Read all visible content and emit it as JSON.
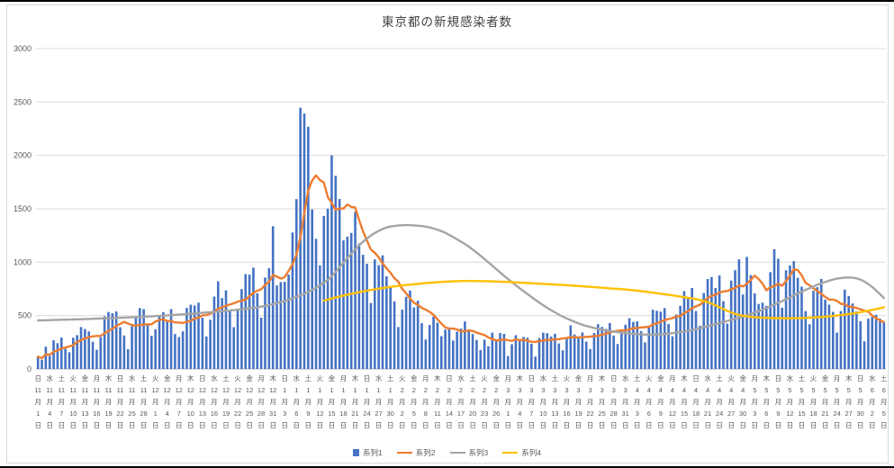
{
  "chart_data": {
    "type": "combo",
    "title": "東京都の新規感染者数",
    "xlabel": "",
    "ylabel": "",
    "ylim": [
      0,
      3000
    ],
    "yticks": [
      0,
      500,
      1000,
      1500,
      2000,
      2500,
      3000
    ],
    "grid": "horizontal",
    "legend_position": "bottom",
    "x_label_step": 3,
    "x_label_format": [
      "weekday",
      "month_number",
      "月",
      "day_number",
      "日"
    ],
    "categories": [
      [
        "日",
        11,
        1
      ],
      [
        "水",
        11,
        4
      ],
      [
        "土",
        11,
        7
      ],
      [
        "火",
        11,
        10
      ],
      [
        "金",
        11,
        13
      ],
      [
        "月",
        11,
        16
      ],
      [
        "木",
        11,
        19
      ],
      [
        "日",
        11,
        22
      ],
      [
        "水",
        11,
        25
      ],
      [
        "土",
        11,
        28
      ],
      [
        "火",
        12,
        1
      ],
      [
        "金",
        12,
        4
      ],
      [
        "月",
        12,
        7
      ],
      [
        "木",
        12,
        10
      ],
      [
        "日",
        12,
        13
      ],
      [
        "水",
        12,
        16
      ],
      [
        "土",
        12,
        19
      ],
      [
        "火",
        12,
        22
      ],
      [
        "金",
        12,
        25
      ],
      [
        "月",
        12,
        28
      ],
      [
        "木",
        12,
        31
      ],
      [
        "日",
        1,
        3
      ],
      [
        "水",
        1,
        6
      ],
      [
        "土",
        1,
        9
      ],
      [
        "火",
        1,
        12
      ],
      [
        "金",
        1,
        15
      ],
      [
        "月",
        1,
        18
      ],
      [
        "木",
        1,
        21
      ],
      [
        "日",
        1,
        24
      ],
      [
        "水",
        1,
        27
      ],
      [
        "土",
        1,
        30
      ],
      [
        "火",
        2,
        2
      ],
      [
        "金",
        2,
        5
      ],
      [
        "月",
        2,
        8
      ],
      [
        "木",
        2,
        11
      ],
      [
        "日",
        2,
        14
      ],
      [
        "水",
        2,
        17
      ],
      [
        "土",
        2,
        20
      ],
      [
        "火",
        2,
        23
      ],
      [
        "金",
        2,
        26
      ],
      [
        "月",
        3,
        1
      ],
      [
        "木",
        3,
        4
      ],
      [
        "日",
        3,
        7
      ],
      [
        "水",
        3,
        10
      ],
      [
        "土",
        3,
        13
      ],
      [
        "火",
        3,
        16
      ],
      [
        "金",
        3,
        19
      ],
      [
        "月",
        3,
        22
      ],
      [
        "木",
        3,
        25
      ],
      [
        "日",
        3,
        28
      ],
      [
        "水",
        3,
        31
      ],
      [
        "土",
        4,
        3
      ],
      [
        "火",
        4,
        6
      ],
      [
        "金",
        4,
        9
      ],
      [
        "月",
        4,
        12
      ],
      [
        "木",
        4,
        15
      ],
      [
        "日",
        4,
        18
      ],
      [
        "水",
        4,
        21
      ],
      [
        "土",
        4,
        24
      ],
      [
        "火",
        4,
        27
      ],
      [
        "金",
        4,
        30
      ],
      [
        "月",
        5,
        3
      ],
      [
        "木",
        5,
        6
      ],
      [
        "日",
        5,
        9
      ],
      [
        "水",
        5,
        12
      ],
      [
        "土",
        5,
        15
      ],
      [
        "火",
        5,
        18
      ],
      [
        "金",
        5,
        21
      ],
      [
        "月",
        5,
        24
      ],
      [
        "木",
        5,
        27
      ],
      [
        "日",
        5,
        30
      ],
      [
        "水",
        6,
        2
      ],
      [
        "土",
        6,
        5
      ]
    ],
    "series": [
      {
        "name": "系列1",
        "type": "bar",
        "color": "#4472C4",
        "values": [
          116,
          87,
          209,
          122,
          269,
          242,
          294,
          189,
          157,
          293,
          317,
          393,
          374,
          352,
          255,
          180,
          298,
          493,
          534,
          522,
          539,
          391,
          314,
          186,
          401,
          481,
          570,
          561,
          418,
          311,
          372,
          500,
          533,
          449,
          561,
          327,
          299,
          352,
          572,
          602,
          595,
          621,
          480,
          305,
          460,
          678,
          822,
          664,
          736,
          556,
          392,
          563,
          748,
          888,
          884,
          949,
          708,
          481,
          856,
          944,
          1337,
          783,
          814,
          816,
          884,
          1278,
          1591,
          2447,
          2392,
          2268,
          1494,
          1219,
          970,
          1433,
          1502,
          2001,
          1809,
          1592,
          1204,
          1240,
          1274,
          1471,
          1175,
          1070,
          986,
          618,
          1026,
          973,
          1064,
          868,
          769,
          633,
          393,
          556,
          676,
          734,
          577,
          639,
          429,
          276,
          412,
          491,
          434,
          307,
          369,
          371,
          266,
          350,
          378,
          445,
          353,
          327,
          272,
          178,
          275,
          213,
          340,
          270,
          337,
          329,
          121,
          232,
          316,
          279,
          301,
          293,
          237,
          116,
          290,
          340,
          335,
          304,
          330,
          239,
          175,
          300,
          409,
          323,
          303,
          342,
          256,
          187,
          337,
          420,
          394,
          376,
          430,
          313,
          234,
          364,
          414,
          475,
          440,
          446,
          355,
          249,
          399,
          555,
          545,
          537,
          570,
          421,
          306,
          510,
          591,
          729,
          667,
          759,
          543,
          405,
          711,
          843,
          861,
          759,
          876,
          635,
          425,
          828,
          925,
          1027,
          698,
          1050,
          879,
          708,
          609,
          621,
          591,
          907,
          1121,
          1032,
          573,
          925,
          969,
          1010,
          854,
          772,
          542,
          419,
          732,
          766,
          843,
          649,
          602,
          535,
          340,
          542,
          743,
          684,
          614,
          539,
          448,
          260,
          471,
          487,
          508,
          472,
          436
        ]
      },
      {
        "name": "系列2",
        "type": "line",
        "color": "#ED7D31",
        "derivation": "ma7_of_series1"
      },
      {
        "name": "系列3",
        "type": "line",
        "color": "#A5A5A5",
        "points": [
          [
            0,
            455
          ],
          [
            10,
            465
          ],
          [
            20,
            478
          ],
          [
            30,
            495
          ],
          [
            40,
            520
          ],
          [
            50,
            550
          ],
          [
            58,
            588
          ],
          [
            64,
            645
          ],
          [
            70,
            735
          ],
          [
            75,
            855
          ],
          [
            78,
            1000
          ],
          [
            83,
            1200
          ],
          [
            87,
            1300
          ],
          [
            90,
            1340
          ],
          [
            95,
            1350
          ],
          [
            100,
            1330
          ],
          [
            104,
            1280
          ],
          [
            110,
            1150
          ],
          [
            115,
            1000
          ],
          [
            120,
            840
          ],
          [
            125,
            700
          ],
          [
            130,
            570
          ],
          [
            135,
            470
          ],
          [
            140,
            400
          ],
          [
            145,
            360
          ],
          [
            150,
            335
          ],
          [
            155,
            320
          ],
          [
            160,
            325
          ],
          [
            165,
            350
          ],
          [
            170,
            390
          ],
          [
            175,
            440
          ],
          [
            180,
            490
          ],
          [
            185,
            555
          ],
          [
            190,
            635
          ],
          [
            195,
            725
          ],
          [
            200,
            805
          ],
          [
            204,
            850
          ],
          [
            208,
            862
          ],
          [
            211,
            830
          ],
          [
            214,
            740
          ],
          [
            216,
            665
          ]
        ]
      },
      {
        "name": "系列4",
        "type": "line",
        "color": "#FFC000",
        "points": [
          [
            73,
            640
          ],
          [
            76,
            670
          ],
          [
            80,
            705
          ],
          [
            85,
            740
          ],
          [
            90,
            770
          ],
          [
            95,
            790
          ],
          [
            100,
            808
          ],
          [
            105,
            820
          ],
          [
            110,
            825
          ],
          [
            115,
            822
          ],
          [
            120,
            815
          ],
          [
            125,
            805
          ],
          [
            130,
            795
          ],
          [
            135,
            785
          ],
          [
            140,
            772
          ],
          [
            145,
            758
          ],
          [
            150,
            745
          ],
          [
            155,
            725
          ],
          [
            160,
            700
          ],
          [
            164,
            678
          ],
          [
            168,
            655
          ],
          [
            171,
            630
          ],
          [
            174,
            580
          ],
          [
            177,
            525
          ],
          [
            180,
            495
          ],
          [
            184,
            482
          ],
          [
            188,
            476
          ],
          [
            192,
            474
          ],
          [
            196,
            478
          ],
          [
            200,
            486
          ],
          [
            204,
            500
          ],
          [
            208,
            518
          ],
          [
            212,
            545
          ],
          [
            216,
            578
          ]
        ]
      }
    ],
    "colors": {
      "gridline": "#D9D9D9",
      "axis_line": "#BFBFBF",
      "tick_text": "#595959",
      "title_text": "#404040"
    }
  }
}
